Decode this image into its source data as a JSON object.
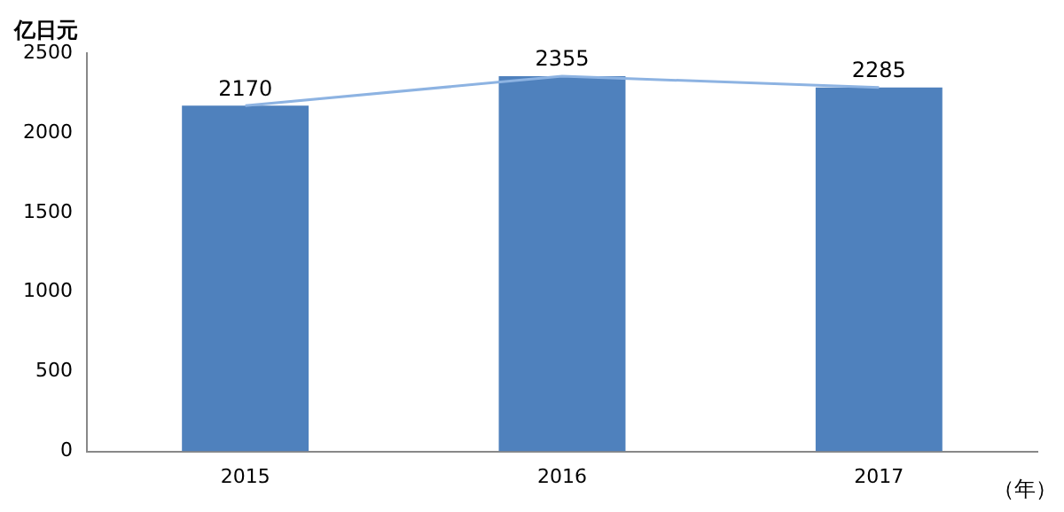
{
  "chart_data": {
    "type": "bar",
    "ylabel": "亿日元",
    "xlabel": "（年）",
    "categories": [
      "2015",
      "2016",
      "2017"
    ],
    "series": [
      {
        "color": "#4f81bd",
        "values": [
          2170,
          2355,
          2285
        ],
        "value_labels": [
          "2170",
          "2355",
          "2285"
        ]
      },
      {
        "type": "line",
        "color": "#8db3e2",
        "values": [
          2170,
          2355,
          2285
        ]
      }
    ],
    "ylim": [
      0,
      2500
    ],
    "yticks": [
      0,
      500,
      1000,
      1500,
      2000,
      2500
    ],
    "grid": false,
    "legend": false,
    "marker": "none"
  }
}
